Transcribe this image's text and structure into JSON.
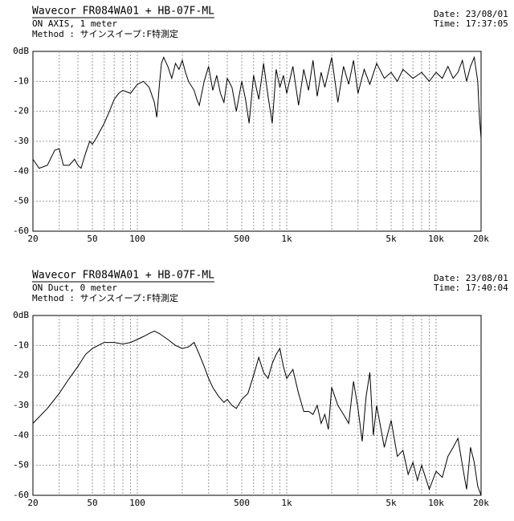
{
  "chart_data": [
    {
      "type": "line",
      "title": "Wavecor FR084WA01 + HB-07F-ML",
      "subtitle": "ON AXIS, 1 meter",
      "method": "Method : サインスイープ:F特測定",
      "date": "Date: 23/08/01",
      "time": "Time: 17:37:05",
      "log_x": true,
      "grid": true,
      "color": "#000000",
      "xlim": [
        20,
        20000
      ],
      "ylim": [
        -60,
        0
      ],
      "xticks": [
        20,
        50,
        100,
        500,
        {
          "value": 1000,
          "label": "1k"
        },
        {
          "value": 5000,
          "label": "5k"
        },
        {
          "value": 10000,
          "label": "10k"
        },
        {
          "value": 20000,
          "label": "20k"
        }
      ],
      "xminor": [
        30,
        40,
        60,
        70,
        80,
        90,
        200,
        300,
        400,
        600,
        700,
        800,
        900,
        2000,
        3000,
        4000,
        6000,
        7000,
        8000,
        9000
      ],
      "yticks": [
        {
          "value": 0,
          "label": "0dB"
        },
        -10,
        -20,
        -30,
        -40,
        -50,
        -60
      ],
      "x": [
        20,
        22,
        25,
        28,
        30,
        32,
        35,
        38,
        40,
        42,
        45,
        48,
        50,
        53,
        60,
        65,
        70,
        75,
        80,
        90,
        100,
        110,
        120,
        130,
        135,
        140,
        145,
        150,
        160,
        170,
        180,
        190,
        200,
        210,
        220,
        240,
        250,
        260,
        280,
        300,
        320,
        340,
        360,
        380,
        400,
        430,
        460,
        500,
        530,
        560,
        600,
        650,
        700,
        750,
        800,
        850,
        900,
        950,
        1000,
        1100,
        1200,
        1300,
        1400,
        1500,
        1600,
        1700,
        1800,
        2000,
        2200,
        2400,
        2600,
        2800,
        3000,
        3300,
        3600,
        4000,
        4500,
        5000,
        5500,
        6000,
        7000,
        8000,
        9000,
        10000,
        11000,
        12000,
        13000,
        14000,
        15000,
        16000,
        17000,
        18000,
        19000,
        19500,
        20000
      ],
      "values": [
        -36,
        -39,
        -38,
        -33,
        -32.5,
        -38,
        -38,
        -36,
        -38,
        -39,
        -34,
        -30,
        -31,
        -29,
        -24,
        -20,
        -16,
        -14,
        -13,
        -14,
        -11,
        -10,
        -12,
        -17,
        -22,
        -12,
        -4,
        -2,
        -5,
        -9,
        -4,
        -6,
        -3,
        -7,
        -10,
        -13,
        -16,
        -18,
        -10,
        -5,
        -13,
        -8,
        -14,
        -17,
        -9,
        -12,
        -20,
        -10,
        -16,
        -24,
        -8,
        -16,
        -4,
        -15,
        -24,
        -6,
        -12,
        -8,
        -14,
        -5,
        -18,
        -6,
        -13,
        -3,
        -15,
        -7,
        -12,
        -2,
        -17,
        -5,
        -11,
        -3,
        -14,
        -6,
        -11,
        -4,
        -9,
        -7,
        -10,
        -6,
        -9,
        -7,
        -10,
        -7,
        -9,
        -5,
        -9,
        -7,
        -3,
        -10,
        -5,
        -2,
        -10,
        -22,
        -29
      ]
    },
    {
      "type": "line",
      "title": "Wavecor FR084WA01 + HB-07F-ML",
      "subtitle": "ON Duct, 0 meter",
      "method": "Method : サインスイープ:F特測定",
      "date": "Date: 23/08/01",
      "time": "Time: 17:40:04",
      "log_x": true,
      "grid": true,
      "color": "#000000",
      "xlim": [
        20,
        20000
      ],
      "ylim": [
        -60,
        0
      ],
      "xticks": [
        20,
        50,
        100,
        500,
        {
          "value": 1000,
          "label": "1k"
        },
        {
          "value": 5000,
          "label": "5k"
        },
        {
          "value": 10000,
          "label": "10k"
        },
        {
          "value": 20000,
          "label": "20k"
        }
      ],
      "xminor": [
        30,
        40,
        60,
        70,
        80,
        90,
        200,
        300,
        400,
        600,
        700,
        800,
        900,
        2000,
        3000,
        4000,
        6000,
        7000,
        8000,
        9000
      ],
      "yticks": [
        {
          "value": 0,
          "label": "0dB"
        },
        -10,
        -20,
        -30,
        -40,
        -50,
        -60
      ],
      "x": [
        20,
        25,
        30,
        35,
        40,
        45,
        50,
        60,
        70,
        80,
        90,
        100,
        110,
        120,
        130,
        140,
        160,
        180,
        200,
        220,
        240,
        260,
        280,
        300,
        320,
        350,
        380,
        400,
        430,
        460,
        500,
        550,
        600,
        650,
        700,
        750,
        800,
        850,
        900,
        950,
        1000,
        1100,
        1200,
        1300,
        1400,
        1500,
        1600,
        1700,
        1800,
        1900,
        2000,
        2200,
        2400,
        2600,
        2800,
        3000,
        3200,
        3400,
        3600,
        3800,
        4000,
        4500,
        5000,
        5500,
        6000,
        6500,
        7000,
        7500,
        8000,
        9000,
        10000,
        11000,
        12000,
        13000,
        14000,
        15000,
        16000,
        17000,
        18000,
        19000,
        20000
      ],
      "values": [
        -36,
        -31,
        -26,
        -21,
        -17,
        -13,
        -11,
        -9,
        -9,
        -9.5,
        -9,
        -8,
        -7,
        -6,
        -5.2,
        -6,
        -8,
        -10,
        -11,
        -10.5,
        -9,
        -13,
        -17,
        -21,
        -24,
        -27,
        -29,
        -28,
        -30,
        -31,
        -28,
        -26,
        -20,
        -14,
        -19,
        -21,
        -16,
        -13,
        -11,
        -17,
        -21,
        -18,
        -26,
        -32,
        -32,
        -33,
        -30,
        -36,
        -33,
        -38,
        -24,
        -30,
        -33,
        -36,
        -22,
        -31,
        -42,
        -27,
        -19,
        -40,
        -30,
        -44,
        -35,
        -47,
        -45,
        -53,
        -49,
        -55,
        -50,
        -58,
        -52,
        -54,
        -47,
        -44,
        -41,
        -50,
        -58,
        -44,
        -49,
        -57,
        -60
      ]
    }
  ]
}
